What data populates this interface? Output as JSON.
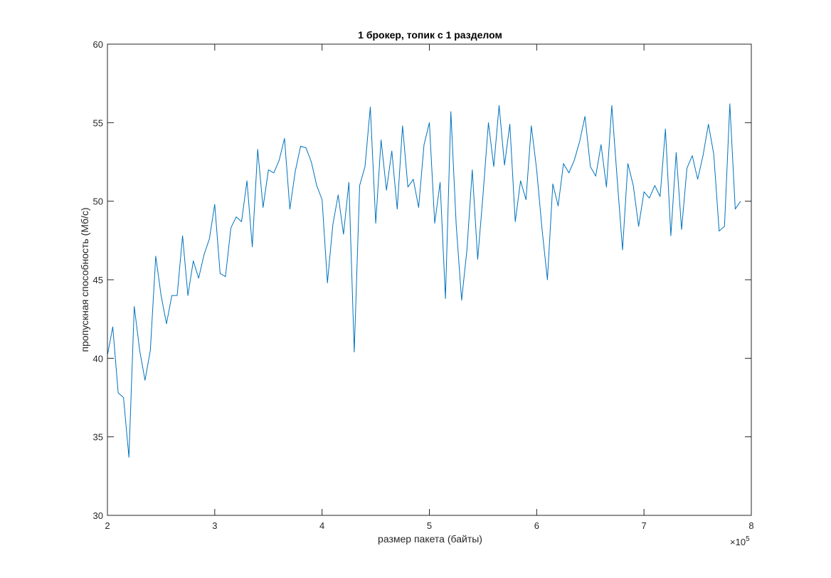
{
  "chart_data": {
    "type": "line",
    "title": "1 брокер, топик с 1 разделом",
    "xlabel": "размер пакета (байты)",
    "ylabel": "пропускная способность (Мб/с)",
    "x_exponent_label": "×10",
    "x_exponent_power": "5",
    "x_tick_labels": [
      "2",
      "3",
      "4",
      "5",
      "6",
      "7",
      "8"
    ],
    "y_tick_labels": [
      "30",
      "35",
      "40",
      "45",
      "50",
      "55",
      "60"
    ],
    "xlim": [
      200000,
      800000
    ],
    "ylim": [
      30,
      60
    ],
    "x_tick_values": [
      200000,
      300000,
      400000,
      500000,
      600000,
      700000,
      800000
    ],
    "y_tick_values": [
      30,
      35,
      40,
      45,
      50,
      55,
      60
    ],
    "grid": false,
    "box": true,
    "series": [
      {
        "color": "#0072BD",
        "x": [
          200000,
          205000,
          210000,
          215000,
          220000,
          225000,
          230000,
          235000,
          240000,
          245000,
          250000,
          255000,
          260000,
          265000,
          270000,
          275000,
          280000,
          285000,
          290000,
          295000,
          300000,
          305000,
          310000,
          315000,
          320000,
          325000,
          330000,
          335000,
          340000,
          345000,
          350000,
          355000,
          360000,
          365000,
          370000,
          375000,
          380000,
          385000,
          390000,
          395000,
          400000,
          405000,
          410000,
          415000,
          420000,
          425000,
          430000,
          435000,
          440000,
          445000,
          450000,
          455000,
          460000,
          465000,
          470000,
          475000,
          480000,
          485000,
          490000,
          495000,
          500000,
          505000,
          510000,
          515000,
          520000,
          525000,
          530000,
          535000,
          540000,
          545000,
          550000,
          555000,
          560000,
          565000,
          570000,
          575000,
          580000,
          585000,
          590000,
          595000,
          600000,
          605000,
          610000,
          615000,
          620000,
          625000,
          630000,
          635000,
          640000,
          645000,
          650000,
          655000,
          660000,
          665000,
          670000,
          675000,
          680000,
          685000,
          690000,
          695000,
          700000,
          705000,
          710000,
          715000,
          720000,
          725000,
          730000,
          735000,
          740000,
          745000,
          750000,
          755000,
          760000,
          765000,
          770000,
          775000,
          780000,
          785000,
          790000
        ],
        "y": [
          40.2,
          42.0,
          37.8,
          37.5,
          33.7,
          43.3,
          40.5,
          38.6,
          40.5,
          46.5,
          44.0,
          42.2,
          44.0,
          44.0,
          47.8,
          44.0,
          46.2,
          45.1,
          46.6,
          47.6,
          49.8,
          45.4,
          45.2,
          48.3,
          49.0,
          48.7,
          51.3,
          47.1,
          53.3,
          49.6,
          52.0,
          51.8,
          52.6,
          54.0,
          49.5,
          51.9,
          53.5,
          53.4,
          52.5,
          51.0,
          50.1,
          44.8,
          48.5,
          50.4,
          47.9,
          51.2,
          40.4,
          51.0,
          52.2,
          56.0,
          48.6,
          53.9,
          50.7,
          53.2,
          49.5,
          54.8,
          50.9,
          51.4,
          49.6,
          53.6,
          55.0,
          48.6,
          51.2,
          43.8,
          55.7,
          48.5,
          43.7,
          46.9,
          52.0,
          46.3,
          50.4,
          55.0,
          52.2,
          56.1,
          52.3,
          54.9,
          48.7,
          51.3,
          50.1,
          54.8,
          52.0,
          48.2,
          45.0,
          51.1,
          49.7,
          52.4,
          51.8,
          52.6,
          53.8,
          55.4,
          52.2,
          51.6,
          53.6,
          50.9,
          56.1,
          51.4,
          46.9,
          52.4,
          51.0,
          48.4,
          50.6,
          50.2,
          51.0,
          50.3,
          54.6,
          47.8,
          53.1,
          48.2,
          52.1,
          52.9,
          51.4,
          52.9,
          54.9,
          53.0,
          48.1,
          48.4,
          56.2,
          49.5,
          50.0
        ]
      }
    ]
  }
}
